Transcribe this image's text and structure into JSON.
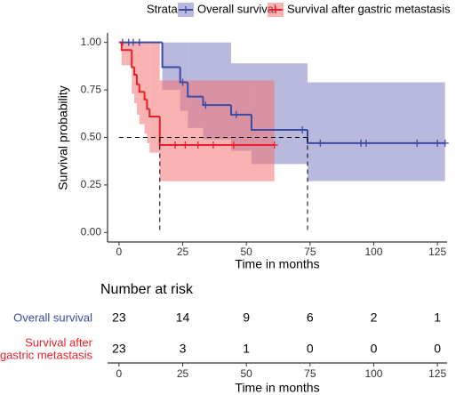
{
  "chart_data": {
    "type": "kaplan-meier",
    "legend_title": "Strata",
    "xlabel": "Time in months",
    "ylabel": "Survival probability",
    "xlim": [
      -4.5,
      128.8
    ],
    "ylim": [
      -0.05,
      1.05
    ],
    "xticks": [
      0,
      25,
      50,
      75,
      100,
      125
    ],
    "yticks": [
      {
        "value": 0,
        "label": "0.00"
      },
      {
        "value": 0.25,
        "label": "0.25"
      },
      {
        "value": 0.5,
        "label": "0.50"
      },
      {
        "value": 0.75,
        "label": "0.75"
      },
      {
        "value": 1,
        "label": "1.00"
      }
    ],
    "series": [
      {
        "name": "Overall survival",
        "color": "#3b4aa3",
        "band_color": "#7f80c2",
        "x": [
          0,
          17,
          24,
          27,
          33,
          44,
          52,
          74
        ],
        "values": [
          1,
          0.87,
          0.79,
          0.715,
          0.67,
          0.62,
          0.54,
          0.47
        ],
        "lower": [
          1,
          0.75,
          0.64,
          0.55,
          0.49,
          0.43,
          0.36,
          0.27
        ],
        "upper": [
          1,
          1,
          1,
          1,
          1,
          0.89,
          0.89,
          0.79
        ],
        "censor_x": [
          1.4,
          3.8,
          5.6,
          8,
          25,
          34,
          46,
          72,
          79,
          95,
          97,
          117,
          125,
          128
        ],
        "censor_y": [
          1,
          1,
          1,
          1,
          0.79,
          0.67,
          0.62,
          0.54,
          0.47,
          0.47,
          0.47,
          0.47,
          0.47,
          0.47
        ]
      },
      {
        "name": "Survival after gastric metastasis",
        "color": "#e8202a",
        "band_color": "#f47272",
        "x": [
          0,
          1,
          5,
          6,
          7,
          8,
          10,
          11,
          12,
          16
        ],
        "values": [
          1,
          0.96,
          0.87,
          0.83,
          0.78,
          0.74,
          0.7,
          0.65,
          0.61,
          0.46
        ],
        "lower": [
          1,
          0.88,
          0.73,
          0.68,
          0.62,
          0.57,
          0.52,
          0.47,
          0.42,
          0.27
        ],
        "upper": [
          1,
          1,
          1,
          1,
          1,
          1,
          1,
          1,
          1,
          0.8
        ],
        "censor_x": [
          22,
          26,
          31,
          37,
          45,
          61
        ],
        "censor_y": [
          0.46,
          0.46,
          0.46,
          0.46,
          0.46,
          0.46
        ]
      }
    ],
    "median": {
      "y": 0.5,
      "x": [
        16,
        74
      ]
    },
    "risk_table": {
      "title": "Number at risk",
      "xlabel": "Time in months",
      "times": [
        0,
        25,
        50,
        75,
        100,
        125
      ],
      "rows": [
        {
          "label_lines": [
            "Overall survival"
          ],
          "values": [
            23,
            14,
            9,
            6,
            2,
            1
          ]
        },
        {
          "label_lines": [
            "Survival after",
            "gastric metastasis"
          ],
          "values": [
            23,
            3,
            1,
            0,
            0,
            0
          ]
        }
      ]
    }
  }
}
